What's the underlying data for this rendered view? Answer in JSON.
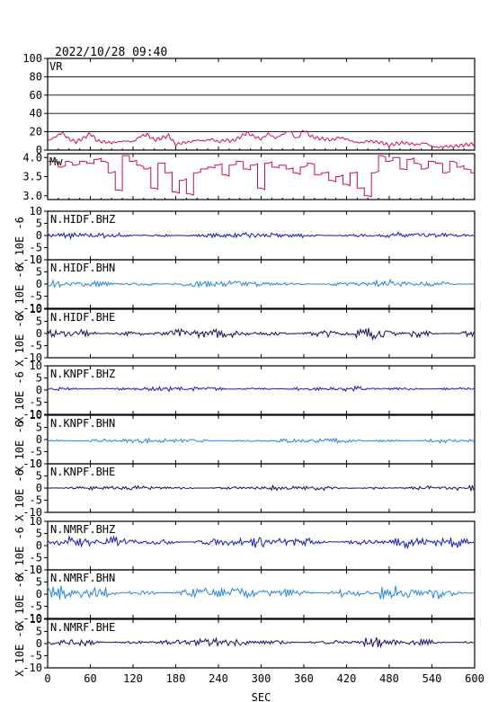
{
  "header": {
    "timestamp": "2022/10/28 09:40"
  },
  "colors": {
    "vr": "#d01040",
    "mw": "#d01040",
    "bhz": "#1a1ab4",
    "bhn": "#2a86d8",
    "bhe": "#12125e",
    "axis": "#000000",
    "grid": "#000000"
  },
  "chart_data": [
    {
      "type": "line",
      "label": "VR",
      "ylim": [
        0,
        100
      ],
      "yticks": [
        "100",
        "80",
        "60",
        "40",
        "20",
        "0"
      ],
      "grid": true,
      "x": [
        0,
        10,
        20,
        30,
        40,
        50,
        60,
        70,
        80,
        90,
        100,
        110,
        120,
        130,
        140,
        150,
        160,
        170,
        180,
        190,
        200,
        210,
        220,
        230,
        240,
        250,
        260,
        270,
        280,
        290,
        300,
        310,
        320,
        330,
        340,
        350,
        360,
        370,
        380,
        390,
        400,
        410,
        420,
        430,
        440,
        450,
        460,
        470,
        480,
        490,
        500,
        510,
        520,
        530,
        540,
        550,
        560,
        570,
        580,
        590,
        600
      ],
      "y": [
        10,
        14,
        19,
        12,
        9,
        13,
        18,
        10,
        9,
        8,
        9,
        10,
        9,
        15,
        17,
        11,
        13,
        16,
        6,
        8,
        9,
        11,
        10,
        12,
        9,
        11,
        10,
        14,
        19,
        15,
        12,
        18,
        13,
        17,
        21,
        12,
        22,
        15,
        13,
        12,
        11,
        14,
        12,
        9,
        8,
        10,
        9,
        8,
        5,
        7,
        8,
        7,
        6,
        8,
        4,
        3,
        4,
        4,
        5,
        6,
        7
      ]
    },
    {
      "type": "line",
      "label": "Mw",
      "ylim": [
        2.9,
        4.1
      ],
      "yticks": [
        "4.0",
        "3.5",
        "3.0"
      ],
      "x": [
        0,
        10,
        20,
        30,
        40,
        50,
        60,
        70,
        80,
        90,
        100,
        110,
        120,
        130,
        140,
        150,
        160,
        170,
        180,
        190,
        200,
        210,
        220,
        230,
        240,
        250,
        260,
        270,
        280,
        290,
        300,
        310,
        320,
        330,
        340,
        350,
        360,
        370,
        380,
        390,
        400,
        410,
        420,
        430,
        440,
        450,
        460,
        470,
        480,
        490,
        500,
        510,
        520,
        530,
        540,
        550,
        560,
        570,
        580,
        590,
        600
      ],
      "y": [
        3.9,
        3.9,
        3.75,
        3.9,
        3.8,
        3.9,
        3.85,
        3.95,
        3.9,
        3.6,
        3.15,
        4.05,
        3.9,
        3.8,
        3.7,
        3.2,
        3.85,
        3.6,
        3.1,
        3.4,
        3.05,
        3.6,
        3.7,
        3.75,
        3.8,
        3.55,
        3.8,
        3.9,
        3.7,
        3.8,
        3.2,
        3.85,
        3.75,
        3.8,
        3.7,
        3.6,
        3.75,
        3.85,
        3.55,
        3.6,
        3.4,
        3.5,
        3.3,
        3.6,
        3.2,
        3.0,
        3.6,
        4.05,
        3.9,
        4.0,
        3.7,
        3.95,
        3.85,
        3.7,
        3.9,
        3.85,
        3.6,
        3.9,
        3.75,
        3.7,
        3.6
      ]
    }
  ],
  "traces": [
    {
      "label": "N.HIDF.BHZ",
      "component": "BHZ",
      "offset": 0.0,
      "amp": 0.5
    },
    {
      "label": "N.HIDF.BHN",
      "component": "BHN",
      "offset": 0.0,
      "amp": 0.6
    },
    {
      "label": "N.HIDF.BHE",
      "component": "BHE",
      "offset": 0.0,
      "amp": 0.8
    },
    {
      "label": "N.KNPF.BHZ",
      "component": "BHZ",
      "offset": 0.5,
      "amp": 0.4
    },
    {
      "label": "N.KNPF.BHN",
      "component": "BHN",
      "offset": -0.5,
      "amp": 0.4
    },
    {
      "label": "N.KNPF.BHE",
      "component": "BHE",
      "offset": 0.0,
      "amp": 0.4
    },
    {
      "label": "N.NMRF.BHZ",
      "component": "BHZ",
      "offset": 1.5,
      "amp": 0.9
    },
    {
      "label": "N.NMRF.BHN",
      "component": "BHN",
      "offset": 0.5,
      "amp": 1.1
    },
    {
      "label": "N.NMRF.BHE",
      "component": "BHE",
      "offset": 0.5,
      "amp": 0.7
    }
  ],
  "trace_axis": {
    "ylim": [
      -10,
      10
    ],
    "yticks": [
      "10",
      "5",
      "0",
      "-5",
      "-10"
    ],
    "ylabel": "X 10E -6"
  },
  "xaxis": {
    "xlim": [
      0,
      600
    ],
    "ticks": [
      "0",
      "60",
      "120",
      "180",
      "240",
      "300",
      "360",
      "420",
      "480",
      "540",
      "600"
    ],
    "xlabel": "SEC"
  }
}
